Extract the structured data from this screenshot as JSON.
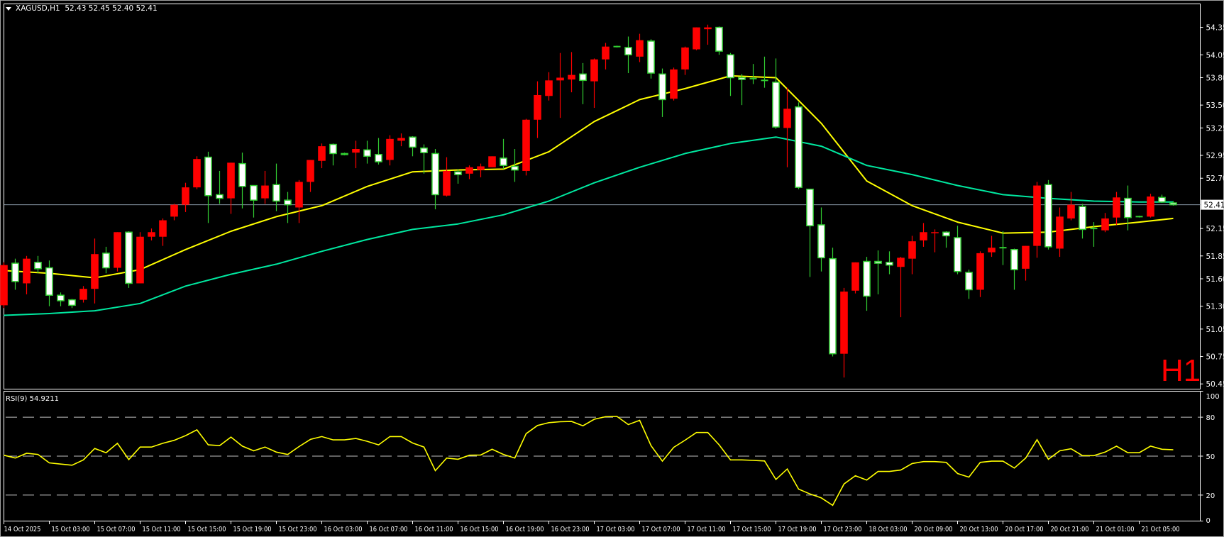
{
  "header": {
    "symbol": "XAGUSD,H1",
    "ohlc": "52.43 52.45 52.40 52.41"
  },
  "timeframe_badge": "H1",
  "rsi_label": "RSI(9) 54.9211",
  "colors": {
    "background": "#000000",
    "bull": "#ff0000",
    "bear_fill": "#ffffff",
    "bear_outline": "#32cd32",
    "ma_fast": "#ffff00",
    "ma_slow": "#00e8a0",
    "rsi": "#ffff00",
    "bid_line": "#8a9aaa",
    "axis": "#ffffff"
  },
  "chart_data": [
    {
      "type": "candlestick",
      "title": "XAGUSD,H1",
      "ylim": [
        50.45,
        54.35
      ],
      "y_ticks": [
        "54.35",
        "54.05",
        "53.80",
        "53.50",
        "53.25",
        "52.95",
        "52.70",
        "52.15",
        "51.85",
        "51.60",
        "51.30",
        "51.05",
        "50.75",
        "50.45"
      ],
      "last_price": "52.41",
      "x_tick_labels": [
        "14 Oct 2025",
        "15 Oct 03:00",
        "15 Oct 07:00",
        "15 Oct 11:00",
        "15 Oct 15:00",
        "15 Oct 19:00",
        "15 Oct 23:00",
        "16 Oct 03:00",
        "16 Oct 07:00",
        "16 Oct 11:00",
        "16 Oct 15:00",
        "16 Oct 19:00",
        "16 Oct 23:00",
        "17 Oct 03:00",
        "17 Oct 07:00",
        "17 Oct 11:00",
        "17 Oct 15:00",
        "17 Oct 19:00",
        "17 Oct 23:00",
        "18 Oct 03:00",
        "20 Oct 09:00",
        "20 Oct 13:00",
        "20 Oct 17:00",
        "20 Oct 21:00",
        "21 Oct 01:00",
        "21 Oct 05:00"
      ],
      "x_tick_every_bars": 4,
      "ohlc_fields": [
        "open",
        "high",
        "low",
        "close"
      ],
      "candles": [
        [
          51.31,
          51.78,
          51.28,
          51.75
        ],
        [
          51.77,
          51.82,
          51.48,
          51.57
        ],
        [
          51.55,
          51.85,
          51.43,
          51.82
        ],
        [
          51.78,
          51.85,
          51.66,
          51.71
        ],
        [
          51.72,
          51.8,
          51.3,
          51.42
        ],
        [
          51.42,
          51.45,
          51.3,
          51.36
        ],
        [
          51.37,
          51.38,
          51.28,
          51.31
        ],
        [
          51.37,
          51.52,
          51.34,
          51.49
        ],
        [
          51.49,
          52.04,
          51.33,
          51.87
        ],
        [
          51.88,
          51.95,
          51.66,
          51.72
        ],
        [
          51.72,
          52.11,
          51.68,
          52.11
        ],
        [
          52.11,
          52.12,
          51.5,
          51.55
        ],
        [
          51.55,
          52.11,
          51.55,
          52.06
        ],
        [
          52.06,
          52.15,
          52.02,
          52.11
        ],
        [
          52.06,
          52.26,
          51.96,
          52.24
        ],
        [
          52.28,
          52.42,
          52.24,
          52.41
        ],
        [
          52.41,
          52.65,
          52.33,
          52.6
        ],
        [
          52.6,
          52.94,
          52.58,
          52.91
        ],
        [
          52.93,
          52.99,
          52.21,
          52.51
        ],
        [
          52.52,
          52.78,
          52.42,
          52.48
        ],
        [
          52.48,
          52.87,
          52.31,
          52.87
        ],
        [
          52.86,
          52.98,
          52.37,
          52.61
        ],
        [
          52.62,
          52.62,
          52.27,
          52.46
        ],
        [
          52.48,
          52.78,
          52.42,
          52.62
        ],
        [
          52.63,
          52.86,
          52.34,
          52.45
        ],
        [
          52.46,
          52.55,
          52.21,
          52.41
        ],
        [
          52.38,
          52.68,
          52.21,
          52.66
        ],
        [
          52.66,
          52.9,
          52.55,
          52.9
        ],
        [
          52.89,
          53.08,
          52.81,
          53.05
        ],
        [
          53.07,
          53.08,
          52.84,
          52.97
        ],
        [
          52.97,
          52.98,
          52.95,
          52.96
        ],
        [
          52.98,
          53.11,
          52.81,
          53.02
        ],
        [
          53.01,
          53.11,
          52.86,
          52.94
        ],
        [
          52.96,
          53.14,
          52.85,
          52.88
        ],
        [
          52.9,
          53.17,
          52.84,
          53.13
        ],
        [
          53.11,
          53.19,
          53.05,
          53.14
        ],
        [
          53.15,
          53.16,
          52.94,
          53.04
        ],
        [
          53.03,
          53.07,
          52.75,
          52.98
        ],
        [
          52.97,
          53.02,
          52.36,
          52.52
        ],
        [
          52.51,
          52.93,
          52.5,
          52.78
        ],
        [
          52.77,
          52.8,
          52.64,
          52.74
        ],
        [
          52.75,
          52.84,
          52.69,
          52.82
        ],
        [
          52.79,
          52.86,
          52.71,
          52.83
        ],
        [
          52.82,
          52.94,
          52.82,
          52.94
        ],
        [
          52.92,
          53.13,
          52.8,
          52.84
        ],
        [
          52.83,
          53.02,
          52.66,
          52.79
        ],
        [
          52.78,
          53.35,
          52.73,
          53.34
        ],
        [
          53.34,
          53.76,
          53.14,
          53.61
        ],
        [
          53.6,
          53.86,
          53.55,
          53.77
        ],
        [
          53.77,
          54.07,
          53.36,
          53.8
        ],
        [
          53.78,
          54.08,
          53.64,
          53.83
        ],
        [
          53.84,
          53.96,
          53.51,
          53.77
        ],
        [
          53.76,
          54.01,
          53.47,
          54.0
        ],
        [
          54.0,
          54.18,
          53.89,
          54.14
        ],
        [
          54.14,
          54.15,
          54.13,
          54.14
        ],
        [
          54.13,
          54.25,
          53.85,
          54.05
        ],
        [
          54.03,
          54.28,
          53.97,
          54.21
        ],
        [
          54.2,
          54.22,
          53.79,
          53.85
        ],
        [
          53.84,
          53.9,
          53.37,
          53.56
        ],
        [
          53.57,
          53.91,
          53.55,
          53.89
        ],
        [
          53.89,
          54.14,
          53.83,
          54.13
        ],
        [
          54.11,
          54.35,
          54.1,
          54.35
        ],
        [
          54.33,
          54.38,
          54.16,
          54.35
        ],
        [
          54.35,
          54.36,
          54.05,
          54.09
        ],
        [
          54.05,
          54.07,
          53.6,
          53.8
        ],
        [
          53.8,
          53.84,
          53.5,
          53.78
        ],
        [
          53.79,
          53.95,
          53.73,
          53.79
        ],
        [
          53.77,
          54.03,
          53.69,
          53.77
        ],
        [
          53.75,
          54.01,
          53.24,
          53.26
        ],
        [
          53.25,
          53.69,
          52.82,
          53.46
        ],
        [
          53.48,
          53.53,
          52.58,
          52.6
        ],
        [
          52.58,
          52.58,
          51.62,
          52.18
        ],
        [
          52.19,
          52.38,
          51.68,
          51.83
        ],
        [
          51.82,
          51.94,
          50.75,
          50.78
        ],
        [
          50.78,
          51.5,
          50.52,
          51.46
        ],
        [
          51.47,
          51.78,
          51.44,
          51.78
        ],
        [
          51.79,
          51.84,
          51.25,
          51.41
        ],
        [
          51.79,
          51.91,
          51.43,
          51.77
        ],
        [
          51.78,
          51.9,
          51.65,
          51.75
        ],
        [
          51.73,
          51.84,
          51.18,
          51.83
        ],
        [
          51.82,
          52.07,
          51.65,
          52.01
        ],
        [
          52.02,
          52.21,
          51.95,
          52.11
        ],
        [
          52.1,
          52.14,
          51.89,
          52.11
        ],
        [
          52.11,
          52.12,
          51.94,
          52.07
        ],
        [
          52.05,
          52.18,
          51.65,
          51.68
        ],
        [
          51.67,
          51.7,
          51.38,
          51.48
        ],
        [
          51.48,
          51.9,
          51.4,
          51.88
        ],
        [
          51.89,
          52.07,
          51.84,
          51.94
        ],
        [
          51.94,
          52.12,
          51.75,
          51.94
        ],
        [
          51.92,
          51.93,
          51.48,
          51.7
        ],
        [
          51.71,
          51.96,
          51.58,
          51.96
        ],
        [
          51.96,
          52.66,
          51.83,
          52.62
        ],
        [
          52.63,
          52.68,
          51.92,
          51.95
        ],
        [
          51.93,
          52.38,
          51.84,
          52.28
        ],
        [
          52.26,
          52.55,
          52.24,
          52.41
        ],
        [
          52.39,
          52.42,
          52.04,
          52.14
        ],
        [
          52.15,
          52.22,
          51.95,
          52.15
        ],
        [
          52.13,
          52.32,
          52.11,
          52.26
        ],
        [
          52.27,
          52.55,
          52.19,
          52.49
        ],
        [
          52.48,
          52.62,
          52.13,
          52.27
        ],
        [
          52.28,
          52.29,
          52.27,
          52.28
        ],
        [
          52.28,
          52.53,
          52.27,
          52.5
        ],
        [
          52.49,
          52.52,
          52.43,
          52.44
        ],
        [
          52.43,
          52.45,
          52.4,
          52.41
        ]
      ],
      "overlays": [
        {
          "type": "line",
          "color": "#ffff00",
          "bar_index": [
            0,
            4,
            8,
            12,
            16,
            20,
            24,
            28,
            32,
            36,
            40,
            44,
            48,
            52,
            56,
            60,
            64,
            68,
            72,
            76,
            80,
            84,
            88,
            92,
            96,
            100,
            103
          ],
          "values": [
            51.69,
            51.66,
            51.61,
            51.7,
            51.92,
            52.12,
            52.28,
            52.4,
            52.61,
            52.77,
            52.79,
            52.8,
            52.99,
            53.32,
            53.56,
            53.68,
            53.82,
            53.8,
            53.3,
            52.67,
            52.4,
            52.22,
            52.1,
            52.11,
            52.17,
            52.22,
            52.26
          ]
        },
        {
          "type": "line",
          "color": "#00e8a0",
          "bar_index": [
            0,
            4,
            8,
            12,
            16,
            20,
            24,
            28,
            32,
            36,
            40,
            44,
            48,
            52,
            56,
            60,
            64,
            68,
            72,
            76,
            80,
            84,
            88,
            92,
            96,
            100,
            103
          ],
          "values": [
            51.2,
            51.22,
            51.25,
            51.33,
            51.52,
            51.65,
            51.76,
            51.9,
            52.03,
            52.14,
            52.2,
            52.3,
            52.45,
            52.65,
            52.82,
            52.97,
            53.08,
            53.15,
            53.05,
            52.84,
            52.74,
            52.62,
            52.52,
            52.48,
            52.45,
            52.44,
            52.44
          ]
        }
      ]
    },
    {
      "type": "line",
      "title": "RSI(9) 54.9211",
      "ylim": [
        0,
        100
      ],
      "y_ticks": [
        "100",
        "80",
        "50",
        "20",
        "0"
      ],
      "levels": [
        80,
        50,
        20
      ],
      "values": [
        50.7,
        48.5,
        52.2,
        51.3,
        44.8,
        43.9,
        43.0,
        47.1,
        55.9,
        52.6,
        59.9,
        47.4,
        57.0,
        57.0,
        59.9,
        62.2,
        65.8,
        70.3,
        58.7,
        58.1,
        64.7,
        57.7,
        54.1,
        57.0,
        53.1,
        51.3,
        57.4,
        62.9,
        65.1,
        62.5,
        62.5,
        63.6,
        61.4,
        58.7,
        65.1,
        65.1,
        60.1,
        57.0,
        38.8,
        48.5,
        47.6,
        50.7,
        50.9,
        55.3,
        51.3,
        48.5,
        67.3,
        73.6,
        75.8,
        76.5,
        76.7,
        73.4,
        78.4,
        80.4,
        80.6,
        74.3,
        77.6,
        58.1,
        46.1,
        56.8,
        62.3,
        68.2,
        68.2,
        58.7,
        47.1,
        47.1,
        46.7,
        46.3,
        32.0,
        40.1,
        24.6,
        20.9,
        17.8,
        12.1,
        28.6,
        34.9,
        31.6,
        38.2,
        38.2,
        39.3,
        44.3,
        45.8,
        45.8,
        45.2,
        36.6,
        33.8,
        45.2,
        46.1,
        46.1,
        40.8,
        48.5,
        62.7,
        47.6,
        54.1,
        55.7,
        50.4,
        50.4,
        53.1,
        57.7,
        52.6,
        52.6,
        57.7,
        55.3,
        54.9
      ]
    }
  ]
}
